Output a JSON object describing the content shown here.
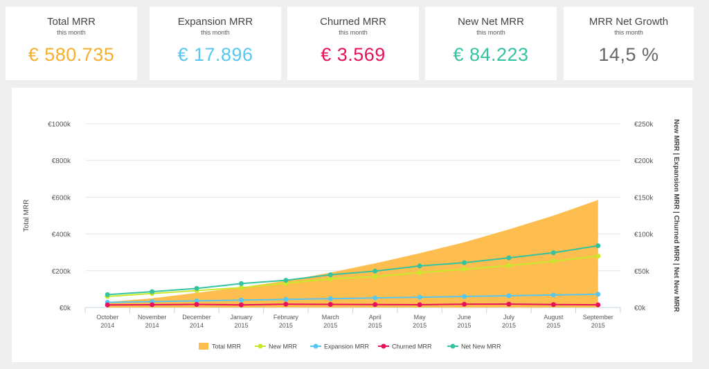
{
  "kpis": [
    {
      "title": "Total MRR",
      "subtitle": "this month",
      "value": "€ 580.735",
      "color": "#f9ae2b"
    },
    {
      "title": "Expansion MRR",
      "subtitle": "this month",
      "value": "€ 17.896",
      "color": "#56c6f2"
    },
    {
      "title": "Churned MRR",
      "subtitle": "this month",
      "value": "€ 3.569",
      "color": "#e8105d"
    },
    {
      "title": "New Net MRR",
      "subtitle": "this month",
      "value": "€ 84.223",
      "color": "#33c3a0"
    },
    {
      "title": "MRR Net Growth",
      "subtitle": "this month",
      "value": "14,5 %",
      "color": "#666666"
    }
  ],
  "chart_data": {
    "type": "line",
    "categories": [
      "October 2014",
      "November 2014",
      "December 2014",
      "January 2015",
      "February 2015",
      "March 2015",
      "April 2015",
      "May 2015",
      "June 2015",
      "July 2015",
      "August 2015",
      "September 2015"
    ],
    "ylabel_left": "Total MRR",
    "ylabel_right": "New MRR | Expansion MRR | Churned MRR | Net New MRR",
    "ylim_left": [
      0,
      1000000
    ],
    "ylim_right": [
      0,
      250000
    ],
    "yticks_left": [
      "€0k",
      "€200k",
      "€400k",
      "€600k",
      "€800k",
      "€1000k"
    ],
    "yticks_right": [
      "€0k",
      "€50k",
      "€100k",
      "€150k",
      "€200k",
      "€250k"
    ],
    "grid": true,
    "legend_position": "bottom",
    "series": [
      {
        "name": "Total MRR",
        "type": "area",
        "axis": "left",
        "color": "#fdbd4f",
        "values": [
          30000,
          50000,
          80000,
          110000,
          145000,
          190000,
          240000,
          295000,
          355000,
          425000,
          500000,
          585000
        ]
      },
      {
        "name": "New MRR",
        "type": "line",
        "axis": "right",
        "color": "#c9e82b",
        "values": [
          15000,
          19000,
          23000,
          27000,
          33000,
          39000,
          42000,
          47500,
          52000,
          57000,
          63000,
          70000
        ]
      },
      {
        "name": "Expansion MRR",
        "type": "line",
        "axis": "right",
        "color": "#56c6f2",
        "values": [
          7000,
          8000,
          9000,
          10000,
          11000,
          12000,
          13000,
          14000,
          15000,
          16000,
          17000,
          18000
        ]
      },
      {
        "name": "Churned MRR",
        "type": "line",
        "axis": "right",
        "color": "#e8105d",
        "values": [
          3500,
          3800,
          4200,
          3500,
          4500,
          4200,
          4000,
          3800,
          4500,
          4600,
          4000,
          3600
        ]
      },
      {
        "name": "Net New MRR",
        "type": "line",
        "axis": "right",
        "color": "#33c3a0",
        "values": [
          17500,
          21500,
          26000,
          32500,
          37000,
          44500,
          49500,
          56500,
          61000,
          67500,
          74500,
          84000
        ]
      }
    ]
  }
}
